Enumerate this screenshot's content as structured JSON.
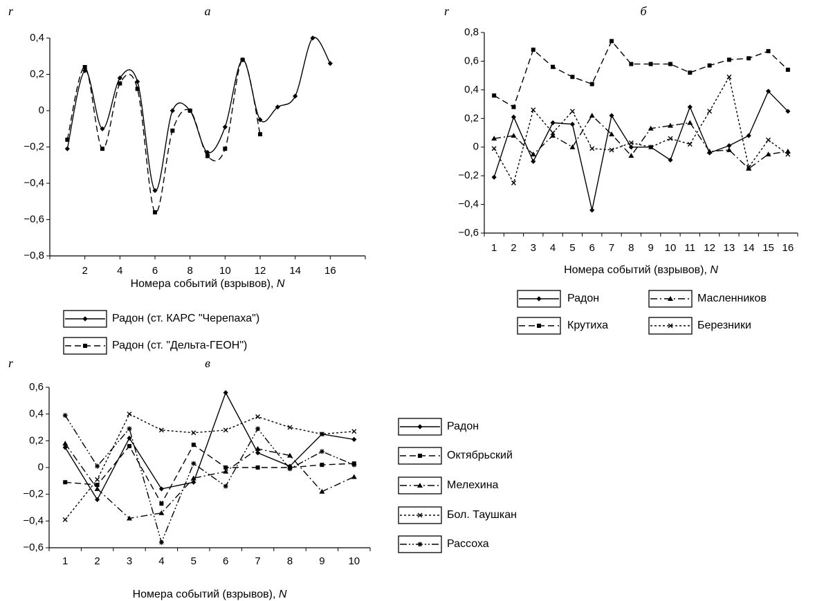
{
  "chart_data": [
    {
      "type": "line",
      "panel": "а",
      "ylabel": "r",
      "xlabel": "Номера событий (взрывов), ",
      "xlabel_var": "N",
      "xlim": [
        0,
        18
      ],
      "ylim": [
        -0.8,
        0.4
      ],
      "xticks": [
        2,
        4,
        6,
        8,
        10,
        12,
        14,
        16
      ],
      "yticks": [
        -0.8,
        -0.6,
        -0.4,
        -0.2,
        0,
        0.2,
        0.4
      ],
      "grid": false,
      "legend_position": "bottom",
      "series": [
        {
          "name": "Радон (ст. КАРС \"Черепаха\")",
          "style": "solid",
          "marker": "diamond",
          "smooth": true,
          "x": [
            1,
            2,
            3,
            4,
            5,
            6,
            7,
            8,
            9,
            10,
            11,
            12,
            13,
            14,
            15,
            16
          ],
          "y": [
            -0.21,
            0.22,
            -0.1,
            0.18,
            0.16,
            -0.44,
            0.0,
            0.0,
            -0.23,
            -0.09,
            0.28,
            -0.05,
            0.02,
            0.08,
            0.4,
            0.26
          ]
        },
        {
          "name": "Радон (ст. \"Дельта-ГЕОН\")",
          "style": "dashed",
          "marker": "square",
          "smooth": true,
          "x": [
            1,
            2,
            3,
            4,
            5,
            6,
            7,
            8,
            9,
            10,
            11,
            12
          ],
          "y": [
            -0.16,
            0.24,
            -0.21,
            0.15,
            0.12,
            -0.56,
            -0.11,
            0.0,
            -0.25,
            -0.21,
            0.28,
            -0.13
          ]
        }
      ]
    },
    {
      "type": "line",
      "panel": "б",
      "ylabel": "r",
      "xlabel": "Номера событий (взрывов), ",
      "xlabel_var": "N",
      "xlim": [
        0.5,
        16.5
      ],
      "ylim": [
        -0.6,
        0.8
      ],
      "xticks": [
        1,
        2,
        3,
        4,
        5,
        6,
        7,
        8,
        9,
        10,
        11,
        12,
        13,
        14,
        15,
        16
      ],
      "yticks": [
        -0.6,
        -0.4,
        -0.2,
        0,
        0.2,
        0.4,
        0.6,
        0.8
      ],
      "grid": false,
      "legend_position": "bottom",
      "series": [
        {
          "name": "Радон",
          "style": "solid",
          "marker": "diamond",
          "x": [
            1,
            2,
            3,
            4,
            5,
            6,
            7,
            8,
            9,
            10,
            11,
            12,
            13,
            14,
            15,
            16
          ],
          "y": [
            -0.21,
            0.21,
            -0.1,
            0.17,
            0.16,
            -0.44,
            0.22,
            0.0,
            0.0,
            -0.09,
            0.28,
            -0.04,
            0.01,
            0.08,
            0.39,
            0.25
          ]
        },
        {
          "name": "Масленников",
          "style": "dashdot",
          "marker": "triangle",
          "x": [
            1,
            2,
            3,
            4,
            5,
            6,
            7,
            8,
            9,
            10,
            11,
            12,
            13,
            14,
            15,
            16
          ],
          "y": [
            0.06,
            0.08,
            -0.05,
            0.08,
            0.0,
            0.22,
            0.09,
            -0.06,
            0.13,
            0.15,
            0.17,
            -0.03,
            -0.02,
            -0.15,
            -0.05,
            -0.03
          ]
        },
        {
          "name": "Крутиха",
          "style": "dashed",
          "marker": "square",
          "x": [
            1,
            2,
            3,
            4,
            5,
            6,
            7,
            8,
            9,
            10,
            11,
            12,
            13,
            14,
            15,
            16
          ],
          "y": [
            0.36,
            0.28,
            0.68,
            0.56,
            0.49,
            0.44,
            0.74,
            0.58,
            0.58,
            0.58,
            0.52,
            0.57,
            0.61,
            0.62,
            0.67,
            0.54
          ]
        },
        {
          "name": "Березники",
          "style": "dotted",
          "marker": "cross",
          "x": [
            1,
            2,
            3,
            4,
            5,
            6,
            7,
            8,
            9,
            10,
            11,
            12,
            13,
            14,
            15,
            16
          ],
          "y": [
            -0.01,
            -0.25,
            0.26,
            0.1,
            0.25,
            -0.01,
            -0.02,
            0.03,
            0.0,
            0.06,
            0.02,
            0.25,
            0.49,
            -0.14,
            0.05,
            -0.05
          ]
        }
      ]
    },
    {
      "type": "line",
      "panel": "в",
      "ylabel": "r",
      "xlabel": "Номера событий (взрывов), ",
      "xlabel_var": "N",
      "xlim": [
        0.5,
        10.5
      ],
      "ylim": [
        -0.6,
        0.6
      ],
      "xticks": [
        1,
        2,
        3,
        4,
        5,
        6,
        7,
        8,
        9,
        10
      ],
      "yticks": [
        -0.6,
        -0.4,
        -0.2,
        0,
        0.2,
        0.4,
        0.6
      ],
      "grid": false,
      "legend_position": "right",
      "series": [
        {
          "name": "Радон",
          "style": "solid",
          "marker": "diamond",
          "x": [
            1,
            2,
            3,
            4,
            5,
            6,
            7,
            8,
            9,
            10
          ],
          "y": [
            0.15,
            -0.24,
            0.22,
            -0.16,
            -0.11,
            0.56,
            0.11,
            0.01,
            0.25,
            0.21
          ]
        },
        {
          "name": "Октябрьский",
          "style": "dashed",
          "marker": "square",
          "x": [
            1,
            2,
            3,
            4,
            5,
            6,
            7,
            8,
            9,
            10
          ],
          "y": [
            -0.11,
            -0.13,
            0.16,
            -0.27,
            0.17,
            0.0,
            0.0,
            0.0,
            0.02,
            0.03
          ]
        },
        {
          "name": "Мелехина",
          "style": "dashdot",
          "marker": "triangle",
          "x": [
            1,
            2,
            3,
            4,
            5,
            6,
            7,
            8,
            9,
            10
          ],
          "y": [
            0.18,
            -0.16,
            -0.38,
            -0.34,
            -0.08,
            -0.03,
            0.14,
            0.09,
            -0.18,
            -0.07
          ]
        },
        {
          "name": "Бол. Таушкан",
          "style": "dotted",
          "marker": "cross",
          "x": [
            1,
            2,
            3,
            4,
            5,
            6,
            7,
            8,
            9,
            10
          ],
          "y": [
            -0.39,
            -0.09,
            0.4,
            0.28,
            0.26,
            0.28,
            0.38,
            0.3,
            0.25,
            0.27
          ]
        },
        {
          "name": "Рассоха",
          "style": "dashdotdot",
          "marker": "asterisk",
          "x": [
            1,
            2,
            3,
            4,
            5,
            6,
            7,
            8,
            9,
            10
          ],
          "y": [
            0.39,
            0.01,
            0.29,
            -0.56,
            0.03,
            -0.14,
            0.29,
            -0.01,
            0.12,
            0.02
          ]
        }
      ]
    }
  ]
}
